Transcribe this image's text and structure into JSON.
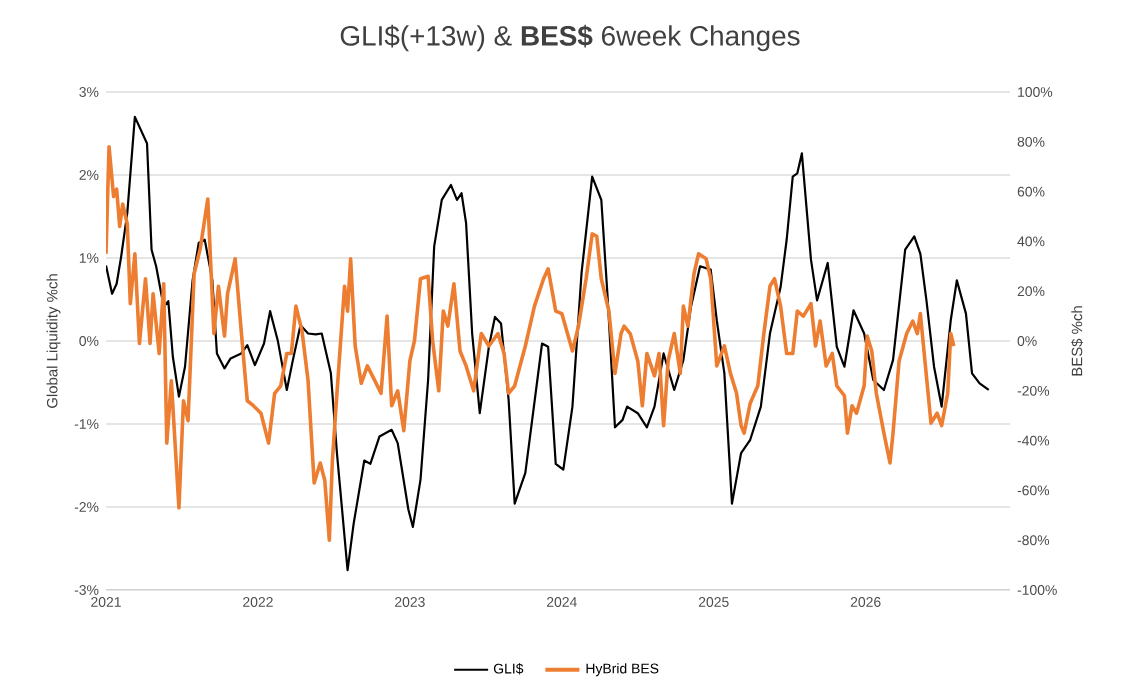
{
  "chart_data": {
    "type": "line",
    "title": "GLI$(+13w) & **BES$** 6week Changes",
    "ylabel": "Global Liquidity %ch",
    "y2label": "BES$ %ch",
    "xlim": [
      2021,
      2026.95
    ],
    "xticks": [
      2021,
      2022,
      2023,
      2024,
      2025,
      2026
    ],
    "ylim": [
      -3,
      3
    ],
    "yticks": [
      {
        "value": -3,
        "label": "-3%"
      },
      {
        "value": -2,
        "label": "-2%"
      },
      {
        "value": -1,
        "label": "-1%"
      },
      {
        "value": 0,
        "label": "0%"
      },
      {
        "value": 1,
        "label": "1%"
      },
      {
        "value": 2,
        "label": "2%"
      },
      {
        "value": 3,
        "label": "3%"
      }
    ],
    "y2lim": [
      -100,
      100
    ],
    "y2ticks": [
      {
        "value": -100,
        "label": "-100%"
      },
      {
        "value": -80,
        "label": "-80%"
      },
      {
        "value": -60,
        "label": "-60%"
      },
      {
        "value": -40,
        "label": "-40%"
      },
      {
        "value": -20,
        "label": "-20%"
      },
      {
        "value": 0,
        "label": "0%"
      },
      {
        "value": 20,
        "label": "20%"
      },
      {
        "value": 40,
        "label": "40%"
      },
      {
        "value": 60,
        "label": "60%"
      },
      {
        "value": 80,
        "label": "80%"
      },
      {
        "value": 100,
        "label": "100%"
      }
    ],
    "grid": "y",
    "legend": "bottom",
    "series": [
      {
        "name": "GLI$",
        "color": "#000000",
        "x": [
          2021.0,
          2021.04,
          2021.07,
          2021.1,
          2021.14,
          2021.19,
          2021.23,
          2021.27,
          2021.3,
          2021.33,
          2021.38,
          2021.41,
          2021.44,
          2021.48,
          2021.52,
          2021.57,
          2021.61,
          2021.65,
          2021.7,
          2021.73,
          2021.78,
          2021.82,
          2021.89,
          2021.93,
          2021.98,
          2022.04,
          2022.08,
          2022.13,
          2022.19,
          2022.23,
          2022.28,
          2022.33,
          2022.38,
          2022.42,
          2022.48,
          2022.52,
          2022.59,
          2022.63,
          2022.7,
          2022.74,
          2022.8,
          2022.88,
          2022.92,
          2022.99,
          2023.02,
          2023.07,
          2023.12,
          2023.16,
          2023.21,
          2023.27,
          2023.31,
          2023.34,
          2023.37,
          2023.41,
          2023.46,
          2023.52,
          2023.56,
          2023.6,
          2023.65,
          2023.69,
          2023.76,
          2023.87,
          2023.91,
          2023.96,
          2024.01,
          2024.07,
          2024.13,
          2024.2,
          2024.26,
          2024.3,
          2024.35,
          2024.4,
          2024.43,
          2024.5,
          2024.56,
          2024.61,
          2024.67,
          2024.74,
          2024.8,
          2024.85,
          2024.91,
          2024.98,
          2025.02,
          2025.07,
          2025.12,
          2025.18,
          2025.24,
          2025.31,
          2025.37,
          2025.44,
          2025.48,
          2025.52,
          2025.55,
          2025.58,
          2025.64,
          2025.68,
          2025.75,
          2025.81,
          2025.86,
          2025.92,
          2025.99,
          2026.05,
          2026.12,
          2026.18,
          2026.26,
          2026.32,
          2026.36,
          2026.4,
          2026.45,
          2026.5,
          2026.56,
          2026.6,
          2026.66,
          2026.7,
          2026.75,
          2026.81
        ],
        "values": [
          0.91,
          0.57,
          0.69,
          1.02,
          1.54,
          2.7,
          2.54,
          2.38,
          1.1,
          0.9,
          0.41,
          0.48,
          -0.19,
          -0.67,
          -0.31,
          0.73,
          1.18,
          1.22,
          0.73,
          -0.15,
          -0.33,
          -0.21,
          -0.15,
          -0.05,
          -0.29,
          -0.03,
          0.36,
          0.01,
          -0.59,
          -0.23,
          0.19,
          0.09,
          0.08,
          0.09,
          -0.39,
          -1.35,
          -2.76,
          -2.2,
          -1.44,
          -1.48,
          -1.15,
          -1.07,
          -1.23,
          -2.03,
          -2.24,
          -1.67,
          -0.47,
          1.14,
          1.7,
          1.88,
          1.7,
          1.78,
          1.42,
          0.09,
          -0.87,
          -0.07,
          0.29,
          0.21,
          -0.71,
          -1.96,
          -1.59,
          -0.03,
          -0.07,
          -1.48,
          -1.55,
          -0.79,
          0.82,
          1.98,
          1.7,
          0.57,
          -1.04,
          -0.95,
          -0.79,
          -0.87,
          -1.04,
          -0.79,
          -0.15,
          -0.59,
          -0.23,
          0.41,
          0.9,
          0.86,
          0.25,
          -0.39,
          -1.96,
          -1.35,
          -1.19,
          -0.79,
          0.09,
          0.65,
          1.22,
          1.98,
          2.02,
          2.26,
          0.98,
          0.49,
          0.94,
          -0.07,
          -0.31,
          0.37,
          0.09,
          -0.47,
          -0.59,
          -0.23,
          1.1,
          1.26,
          1.05,
          0.49,
          -0.31,
          -0.79,
          0.25,
          0.73,
          0.33,
          -0.39,
          -0.51,
          -0.59
        ]
      },
      {
        "name": "HyBrid BES",
        "color": "#ed7d31",
        "axis": "y2",
        "x": [
          2021.0,
          2021.02,
          2021.05,
          2021.07,
          2021.09,
          2021.11,
          2021.14,
          2021.16,
          2021.19,
          2021.22,
          2021.26,
          2021.29,
          2021.31,
          2021.35,
          2021.38,
          2021.4,
          2021.43,
          2021.48,
          2021.51,
          2021.54,
          2021.58,
          2021.62,
          2021.67,
          2021.71,
          2021.74,
          2021.78,
          2021.8,
          2021.85,
          2021.89,
          2021.93,
          2021.97,
          2022.02,
          2022.07,
          2022.11,
          2022.15,
          2022.19,
          2022.22,
          2022.25,
          2022.29,
          2022.33,
          2022.37,
          2022.41,
          2022.44,
          2022.47,
          2022.49,
          2022.52,
          2022.57,
          2022.59,
          2022.61,
          2022.64,
          2022.68,
          2022.72,
          2022.77,
          2022.81,
          2022.85,
          2022.88,
          2022.92,
          2022.96,
          2023.0,
          2023.03,
          2023.07,
          2023.12,
          2023.15,
          2023.19,
          2023.22,
          2023.25,
          2023.29,
          2023.33,
          2023.37,
          2023.42,
          2023.47,
          2023.52,
          2023.58,
          2023.62,
          2023.65,
          2023.69,
          2023.76,
          2023.82,
          2023.88,
          2023.91,
          2023.96,
          2024.0,
          2024.07,
          2024.11,
          2024.16,
          2024.2,
          2024.23,
          2024.26,
          2024.31,
          2024.35,
          2024.39,
          2024.41,
          2024.45,
          2024.5,
          2024.53,
          2024.56,
          2024.61,
          2024.64,
          2024.67,
          2024.7,
          2024.74,
          2024.78,
          2024.8,
          2024.83,
          2024.87,
          2024.9,
          2024.95,
          2024.98,
          2025.02,
          2025.07,
          2025.11,
          2025.15,
          2025.18,
          2025.2,
          2025.24,
          2025.29,
          2025.33,
          2025.37,
          2025.4,
          2025.44,
          2025.48,
          2025.52,
          2025.55,
          2025.59,
          2025.64,
          2025.67,
          2025.7,
          2025.74,
          2025.78,
          2025.81,
          2025.86,
          2025.88,
          2025.91,
          2025.94,
          2025.99,
          2026.01,
          2026.04,
          2026.07,
          2026.12,
          2026.16,
          2026.18,
          2026.22,
          2026.27,
          2026.31,
          2026.34,
          2026.36,
          2026.39,
          2026.43,
          2026.47,
          2026.5,
          2026.54,
          2026.56,
          2026.58
        ],
        "values": [
          35,
          78,
          58,
          61,
          46,
          55,
          47,
          15,
          35,
          -1,
          25,
          -1,
          19,
          -5,
          23,
          -41,
          -16,
          -67,
          -24,
          -32,
          27,
          37,
          57,
          3,
          22,
          2,
          19,
          33,
          4,
          -24,
          -26,
          -29,
          -41,
          -21,
          -18,
          -5,
          -5,
          14,
          4,
          -16,
          -57,
          -49,
          -56,
          -80,
          -48,
          -21,
          22,
          12,
          33,
          -2,
          -17,
          -10,
          -16,
          -21,
          10,
          -26,
          -20,
          -36,
          -8,
          0,
          25,
          26,
          0,
          -20,
          12,
          6,
          23,
          -4,
          -10,
          -20,
          3,
          -2,
          3,
          -5,
          -21,
          -18,
          -2,
          14,
          25,
          29,
          12,
          11,
          -4,
          6,
          25,
          43,
          42,
          25,
          12,
          -13,
          3,
          6,
          3,
          -8,
          -26,
          -5,
          -14,
          -5,
          -34,
          -8,
          3,
          -13,
          14,
          6,
          27,
          35,
          33,
          25,
          -10,
          -2,
          -13,
          -21,
          -34,
          -37,
          -25,
          -18,
          3,
          22,
          25,
          14,
          -5,
          -5,
          12,
          10,
          15,
          -2,
          8,
          -10,
          -5,
          -18,
          -22,
          -37,
          -26,
          -29,
          -18,
          2,
          -4,
          -21,
          -37,
          -49,
          -37,
          -8,
          3,
          8,
          3,
          11,
          -8,
          -33,
          -29,
          -34,
          -21,
          3,
          -2
        ]
      }
    ]
  }
}
